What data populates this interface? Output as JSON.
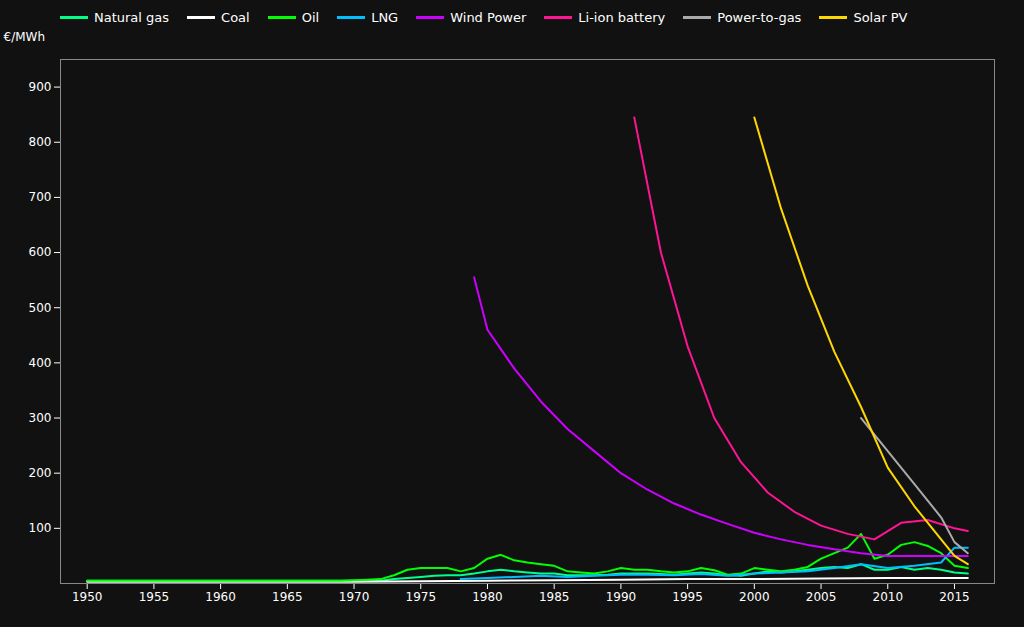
{
  "chart_data": {
    "type": "line",
    "y_label": "€/MWh",
    "xlim": [
      1948,
      2018
    ],
    "ylim": [
      0,
      950
    ],
    "xticks": [
      1950,
      1955,
      1960,
      1965,
      1970,
      1975,
      1980,
      1985,
      1990,
      1995,
      2000,
      2005,
      2010,
      2015
    ],
    "yticks": [
      100,
      200,
      300,
      400,
      500,
      600,
      700,
      800,
      900
    ],
    "grid": false,
    "legend": "upper left",
    "series": [
      {
        "name": "Natural gas",
        "color": "#00ff88",
        "x": [
          1950,
          1951,
          1952,
          1953,
          1954,
          1955,
          1956,
          1957,
          1958,
          1959,
          1960,
          1961,
          1962,
          1963,
          1964,
          1965,
          1966,
          1967,
          1968,
          1969,
          1970,
          1971,
          1972,
          1973,
          1974,
          1975,
          1976,
          1977,
          1978,
          1979,
          1980,
          1981,
          1982,
          1983,
          1984,
          1985,
          1986,
          1987,
          1988,
          1989,
          1990,
          1991,
          1992,
          1993,
          1994,
          1995,
          1996,
          1997,
          1998,
          1999,
          2000,
          2001,
          2002,
          2003,
          2004,
          2005,
          2006,
          2007,
          2008,
          2009,
          2010,
          2011,
          2012,
          2013,
          2014,
          2015,
          2016
        ],
        "values": [
          5,
          5,
          5,
          5,
          5,
          5,
          5,
          5,
          5,
          5,
          5,
          5,
          5,
          5,
          5,
          5,
          5,
          5,
          5,
          5,
          5,
          5,
          5,
          8,
          10,
          12,
          14,
          15,
          15,
          18,
          22,
          25,
          22,
          20,
          18,
          18,
          15,
          15,
          15,
          16,
          18,
          18,
          18,
          17,
          16,
          18,
          20,
          18,
          15,
          14,
          18,
          22,
          20,
          22,
          25,
          28,
          30,
          28,
          35,
          25,
          25,
          30,
          25,
          28,
          25,
          20,
          18
        ]
      },
      {
        "name": "Coal",
        "color": "#ffffff",
        "x": [
          1950,
          1955,
          1960,
          1965,
          1970,
          1975,
          1980,
          1985,
          1990,
          1995,
          2000,
          2005,
          2010,
          2015,
          2016
        ],
        "values": [
          3,
          3,
          3,
          3,
          3,
          4,
          5,
          6,
          7,
          8,
          8,
          9,
          10,
          10,
          10
        ]
      },
      {
        "name": "Oil",
        "color": "#00ff00",
        "x": [
          1950,
          1951,
          1952,
          1953,
          1954,
          1955,
          1956,
          1957,
          1958,
          1959,
          1960,
          1961,
          1962,
          1963,
          1964,
          1965,
          1966,
          1967,
          1968,
          1969,
          1970,
          1971,
          1972,
          1973,
          1974,
          1975,
          1976,
          1977,
          1978,
          1979,
          1980,
          1981,
          1982,
          1983,
          1984,
          1985,
          1986,
          1987,
          1988,
          1989,
          1990,
          1991,
          1992,
          1993,
          1994,
          1995,
          1996,
          1997,
          1998,
          1999,
          2000,
          2001,
          2002,
          2003,
          2004,
          2005,
          2006,
          2007,
          2008,
          2009,
          2010,
          2011,
          2012,
          2013,
          2014,
          2015,
          2016
        ],
        "values": [
          5,
          5,
          5,
          5,
          5,
          5,
          5,
          5,
          5,
          5,
          5,
          5,
          5,
          5,
          5,
          5,
          5,
          5,
          5,
          5,
          6,
          7,
          8,
          15,
          25,
          28,
          28,
          28,
          22,
          28,
          45,
          52,
          42,
          38,
          35,
          32,
          22,
          20,
          18,
          22,
          28,
          25,
          25,
          22,
          20,
          22,
          28,
          24,
          16,
          18,
          28,
          25,
          22,
          25,
          30,
          45,
          55,
          65,
          90,
          45,
          52,
          70,
          75,
          68,
          55,
          32,
          28
        ]
      },
      {
        "name": "LNG",
        "color": "#00bfff",
        "x": [
          1978,
          1980,
          1982,
          1984,
          1986,
          1988,
          1990,
          1992,
          1994,
          1996,
          1998,
          2000,
          2002,
          2004,
          2006,
          2008,
          2010,
          2012,
          2014,
          2015,
          2016
        ],
        "values": [
          8,
          10,
          12,
          14,
          12,
          14,
          16,
          16,
          15,
          17,
          14,
          18,
          20,
          22,
          28,
          35,
          28,
          32,
          38,
          65,
          65
        ]
      },
      {
        "name": "Wind Power",
        "color": "#cc00ff",
        "x": [
          1979,
          1980,
          1982,
          1984,
          1986,
          1988,
          1990,
          1992,
          1994,
          1996,
          1998,
          2000,
          2002,
          2004,
          2006,
          2008,
          2010,
          2012,
          2014,
          2016
        ],
        "values": [
          555,
          460,
          390,
          330,
          280,
          240,
          200,
          170,
          145,
          125,
          108,
          92,
          80,
          70,
          62,
          55,
          50,
          50,
          50,
          50
        ]
      },
      {
        "name": "Li-ion battery",
        "color": "#ff1493",
        "x": [
          1991,
          1993,
          1995,
          1997,
          1999,
          2001,
          2003,
          2005,
          2007,
          2009,
          2011,
          2013,
          2015,
          2016
        ],
        "values": [
          845,
          600,
          430,
          300,
          220,
          165,
          130,
          105,
          90,
          80,
          110,
          115,
          100,
          95
        ]
      },
      {
        "name": "Power-to-gas",
        "color": "#aaaaaa",
        "x": [
          2008,
          2010,
          2012,
          2014,
          2015,
          2016
        ],
        "values": [
          300,
          240,
          180,
          120,
          75,
          55
        ]
      },
      {
        "name": "Solar PV",
        "color": "#ffd700",
        "x": [
          2000,
          2002,
          2004,
          2006,
          2008,
          2010,
          2012,
          2014,
          2015,
          2016
        ],
        "values": [
          845,
          680,
          540,
          420,
          320,
          210,
          140,
          80,
          50,
          35
        ]
      }
    ]
  }
}
